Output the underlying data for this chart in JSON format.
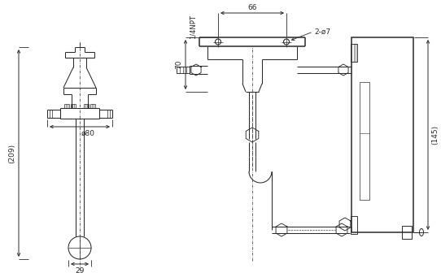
{
  "bg_color": "#ffffff",
  "line_color": "#2a2a2a",
  "dim_color": "#2a2a2a",
  "annotations": {
    "dim_209": "(209)",
    "dim_29": "29",
    "dim_80": "ø80",
    "dim_66": "66",
    "dim_70": "70",
    "dim_145": "(145)",
    "dim_2phi7": "2-ø7",
    "dim_npt": "1/4NPT"
  }
}
